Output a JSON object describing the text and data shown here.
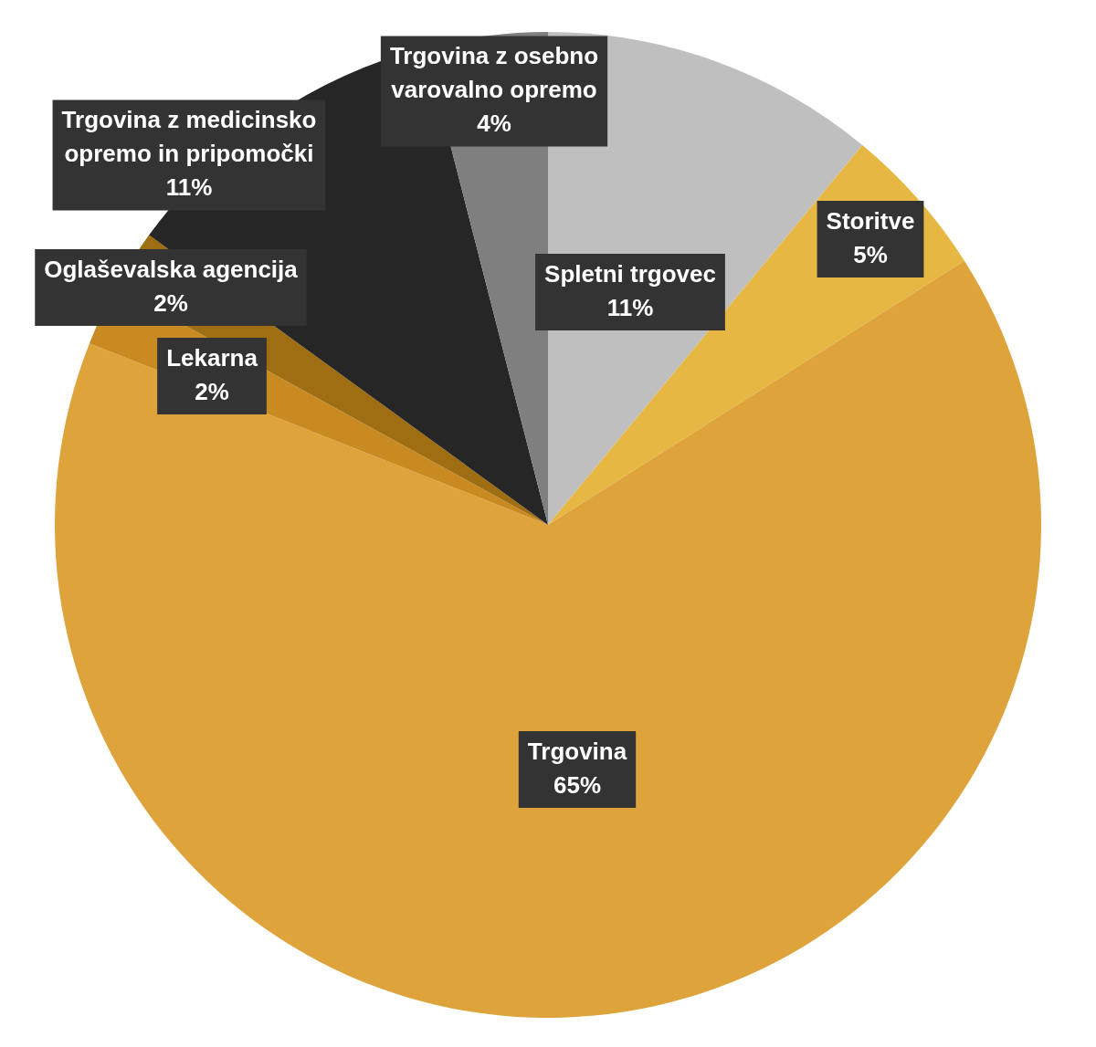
{
  "chart_data": {
    "type": "pie",
    "categories": [
      "Spletni trgovec",
      "Storitve",
      "Trgovina",
      "Lekarna",
      "Oglaševalska agencija",
      "Trgovina z medicinsko opremo in pripomočki",
      "Trgovina z osebno varovalno opremo"
    ],
    "values": [
      11,
      5,
      65,
      2,
      2,
      11,
      4
    ],
    "value_labels": [
      "11%",
      "5%",
      "65%",
      "2%",
      "2%",
      "11%",
      "4%"
    ],
    "colors": [
      "#bfbfbf",
      "#e6b843",
      "#dea33b",
      "#c98a22",
      "#a06e12",
      "#262626",
      "#7f7f7f"
    ]
  }
}
